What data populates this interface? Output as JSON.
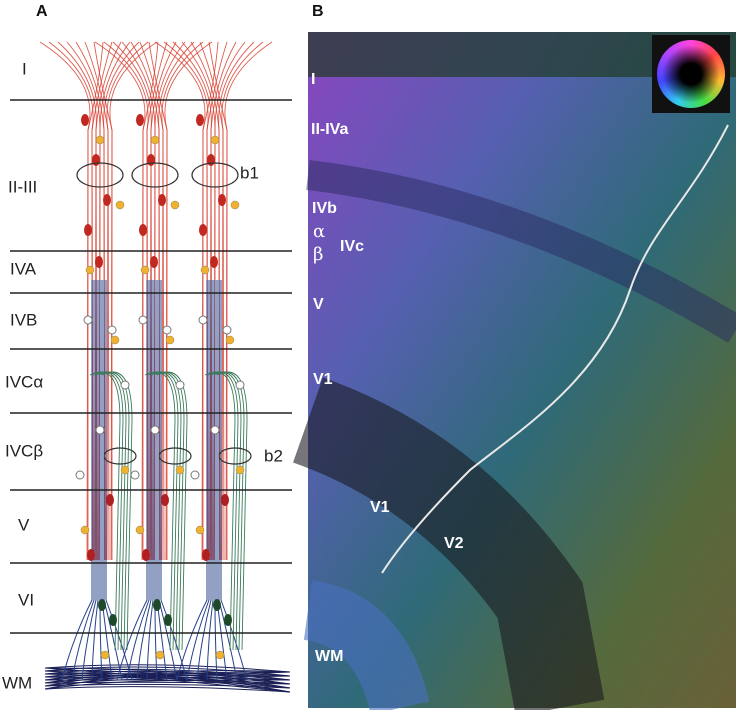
{
  "panel_a": {
    "label": "A",
    "layers": [
      "I",
      "II-III",
      "IVA",
      "IVB",
      "IVCα",
      "IVCβ",
      "V",
      "VI",
      "WM"
    ],
    "annotations": [
      "b1",
      "b2"
    ]
  },
  "panel_b": {
    "label": "B",
    "layers": [
      "I",
      "II-IVa",
      "IVb",
      "α",
      "β",
      "IVc",
      "V",
      "V1"
    ],
    "areas": [
      "V1",
      "V2",
      "WM"
    ]
  }
}
